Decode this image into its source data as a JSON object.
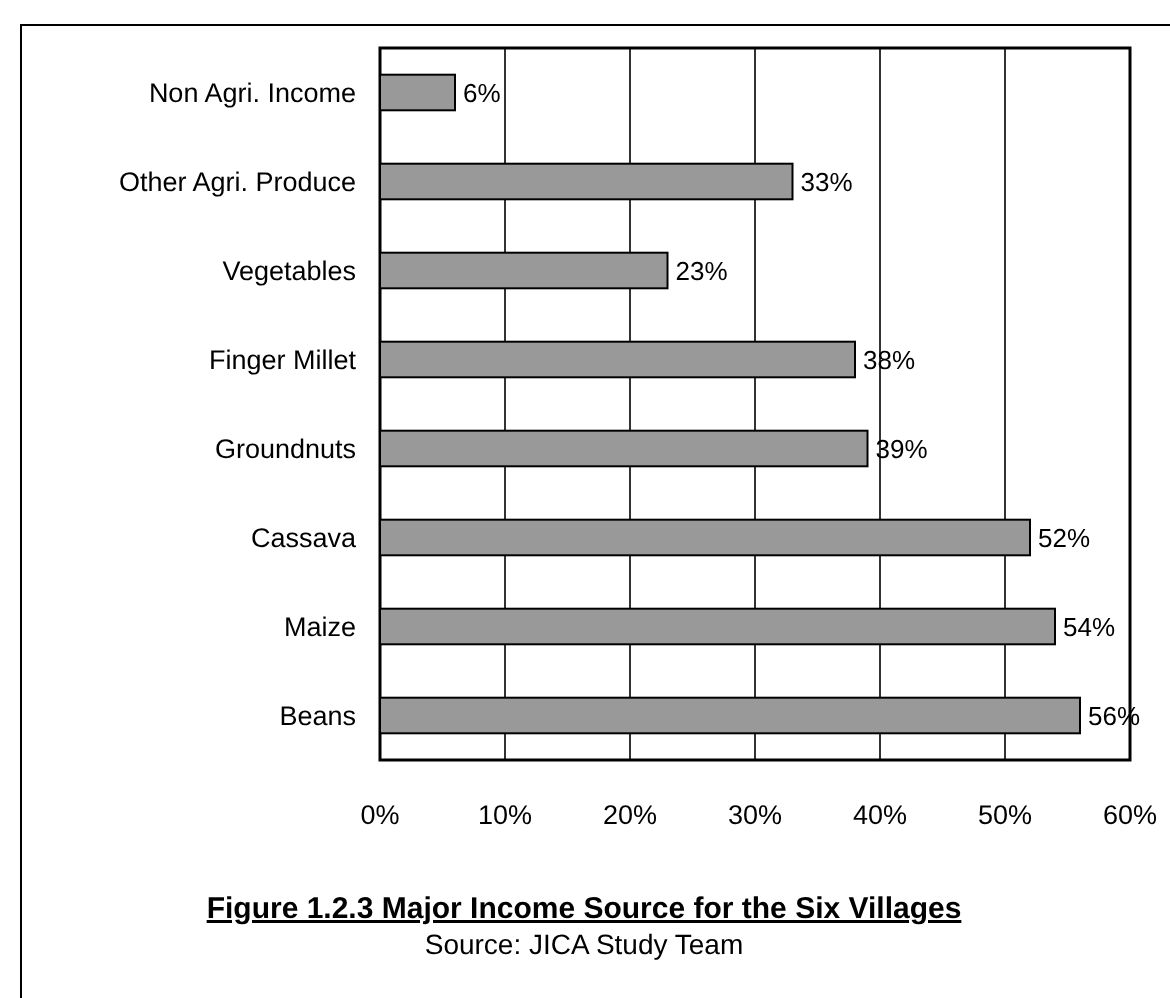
{
  "chart_data": {
    "type": "bar",
    "orientation": "horizontal",
    "title": "Figure 1.2.3 Major Income Source for the Six Villages",
    "annotations": [
      "Source: JICA Study Team"
    ],
    "categories": [
      "Non Agri. Income",
      "Other Agri. Produce",
      "Vegetables",
      "Finger Millet",
      "Groundnuts",
      "Cassava",
      "Maize",
      "Beans"
    ],
    "values": [
      6,
      33,
      23,
      38,
      39,
      52,
      54,
      56
    ],
    "value_labels": [
      "6%",
      "33%",
      "23%",
      "38%",
      "39%",
      "52%",
      "54%",
      "56%"
    ],
    "color": "#999999",
    "xlim": [
      0,
      60
    ],
    "xticks": [
      {
        "value": 0,
        "label": "0%"
      },
      {
        "value": 10,
        "label": "10%"
      },
      {
        "value": 20,
        "label": "20%"
      },
      {
        "value": 30,
        "label": "30%"
      },
      {
        "value": 40,
        "label": "40%"
      },
      {
        "value": 50,
        "label": "50%"
      },
      {
        "value": 60,
        "label": "60%"
      }
    ],
    "grid": "x"
  }
}
